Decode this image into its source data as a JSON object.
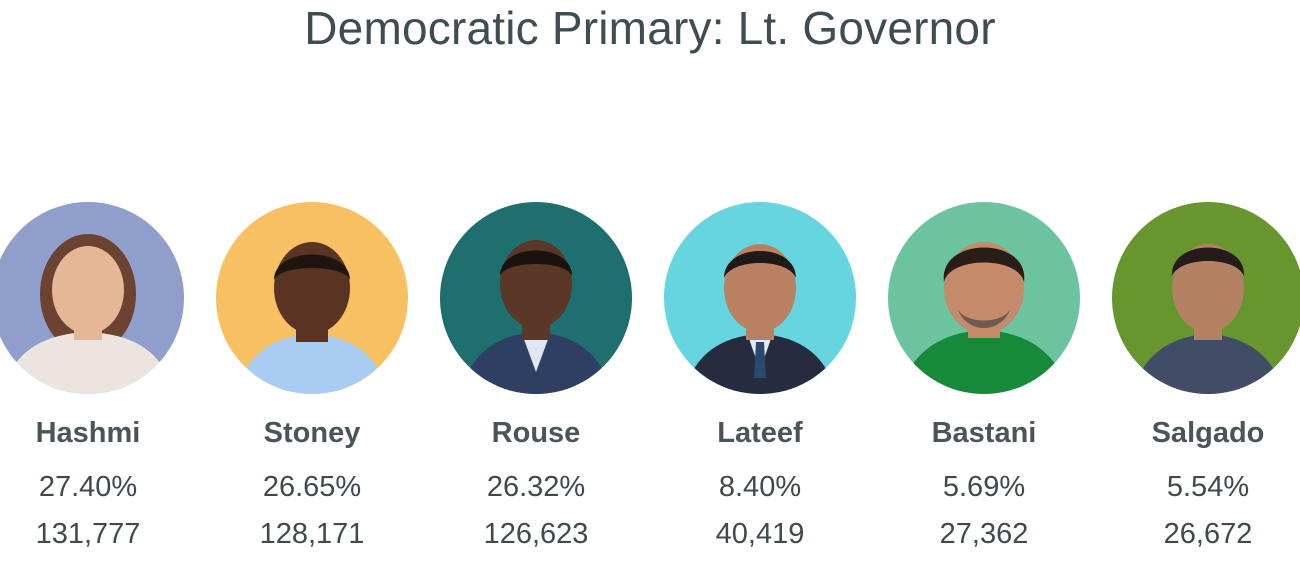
{
  "title": "Democratic Primary: Lt. Governor",
  "candidates": [
    {
      "name": "Hashmi",
      "percent": "27.40%",
      "votes": "131,777",
      "bg_color": "#8f9ecb",
      "skin": "#e6b797",
      "hair": "#6b4330",
      "shirt": "#ece4df",
      "portrait_icon": "candidate-portrait-icon"
    },
    {
      "name": "Stoney",
      "percent": "26.65%",
      "votes": "128,171",
      "bg_color": "#f7c062",
      "skin": "#5a3422",
      "hair": "#1e1410",
      "shirt": "#a9cdf2",
      "portrait_icon": "candidate-portrait-icon"
    },
    {
      "name": "Rouse",
      "percent": "26.32%",
      "votes": "126,623",
      "bg_color": "#1f6e70",
      "skin": "#5a3726",
      "hair": "#1a1210",
      "shirt": "#2e3f63",
      "portrait_icon": "candidate-portrait-icon"
    },
    {
      "name": "Lateef",
      "percent": "8.40%",
      "votes": "40,419",
      "bg_color": "#66d5df",
      "skin": "#b98061",
      "hair": "#1e1a18",
      "shirt": "#252c40",
      "portrait_icon": "candidate-portrait-icon"
    },
    {
      "name": "Bastani",
      "percent": "5.69%",
      "votes": "27,362",
      "bg_color": "#6cc3a0",
      "skin": "#c48a6a",
      "hair": "#2a1d18",
      "shirt": "#178a3a",
      "portrait_icon": "candidate-portrait-icon"
    },
    {
      "name": "Salgado",
      "percent": "5.54%",
      "votes": "26,672",
      "bg_color": "#67962f",
      "skin": "#b48262",
      "hair": "#231c1a",
      "shirt": "#414d66",
      "portrait_icon": "candidate-portrait-icon"
    }
  ]
}
